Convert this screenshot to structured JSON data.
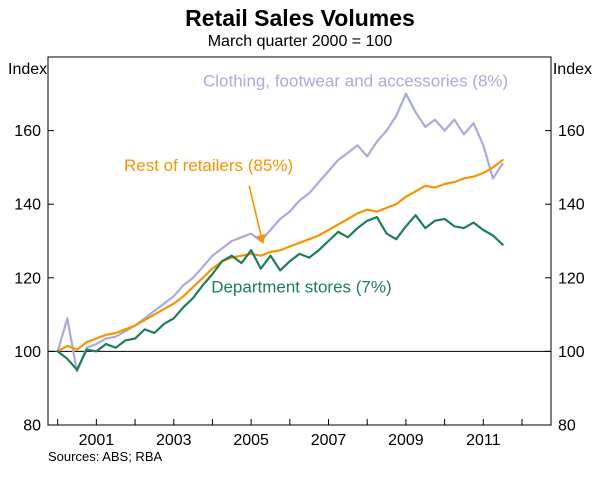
{
  "header": {
    "title": "Retail Sales Volumes",
    "subtitle": "March quarter 2000 = 100"
  },
  "footer": {
    "source": "Sources: ABS; RBA"
  },
  "chart_data": {
    "type": "line",
    "title": "Retail Sales Volumes",
    "subtitle": "March quarter 2000 = 100",
    "y_axis_label": "Index",
    "grid": false,
    "legend": "inline-annotations",
    "x_start": 2000.0,
    "x_step": 0.25,
    "x_domain": [
      1999.75,
      2012.75
    ],
    "y_domain": [
      80,
      180
    ],
    "baseline": 100,
    "y_ticks": [
      80,
      100,
      120,
      140,
      160
    ],
    "x_ticks": [
      2000,
      2001,
      2002,
      2003,
      2004,
      2005,
      2006,
      2007,
      2008,
      2009,
      2010,
      2011,
      2012
    ],
    "x_labels": [
      {
        "pos": 2001,
        "text": "2001"
      },
      {
        "pos": 2003,
        "text": "2003"
      },
      {
        "pos": 2005,
        "text": "2005"
      },
      {
        "pos": 2007,
        "text": "2007"
      },
      {
        "pos": 2009,
        "text": "2009"
      },
      {
        "pos": 2011,
        "text": "2011"
      }
    ],
    "series": [
      {
        "id": "clothing-footwear-accessories",
        "name": "Clothing, footwear and accessories (8%)",
        "color": "#ABABD8",
        "values": [
          100,
          109,
          94.5,
          101,
          102,
          103.5,
          104,
          105.5,
          107,
          109,
          111,
          113,
          115,
          118,
          120,
          123,
          126,
          128,
          130,
          131,
          132,
          130,
          133,
          136,
          138,
          141,
          143,
          146,
          149,
          152,
          154,
          156,
          153,
          157,
          160,
          164,
          170,
          165,
          161,
          163,
          160,
          163,
          159,
          162,
          156,
          147,
          151
        ]
      },
      {
        "id": "rest-of-retailers",
        "name": "Rest of retailers (85%)",
        "color": "#F79400",
        "values": [
          100,
          101.5,
          100.5,
          102.5,
          103.5,
          104.5,
          105,
          106,
          107,
          108.5,
          110,
          111.5,
          113,
          115,
          117.5,
          120,
          122.5,
          124.5,
          125.5,
          126,
          126.5,
          126,
          127,
          127.5,
          128.5,
          129.5,
          130.5,
          131.5,
          133,
          134.5,
          136,
          137.5,
          138.5,
          138,
          139,
          140,
          142,
          143.5,
          145,
          144.5,
          145.5,
          146,
          147,
          147.5,
          148.5,
          150,
          152
        ]
      },
      {
        "id": "department-stores",
        "name": "Department stores (7%)",
        "color": "#1E7D5C",
        "values": [
          100,
          98,
          95,
          100.5,
          100,
          102,
          101,
          103,
          103.5,
          106,
          105,
          107.5,
          109,
          112,
          114.5,
          118,
          121,
          124.5,
          126,
          124,
          127.5,
          122.5,
          126,
          122,
          124.5,
          126.5,
          125.5,
          127.5,
          130,
          132.5,
          131,
          133.5,
          135.5,
          136.5,
          132,
          130.5,
          134,
          137,
          133.5,
          135.5,
          136,
          134,
          133.5,
          135,
          133,
          131.5,
          129
        ]
      }
    ],
    "annotations": [
      {
        "id": "clothing-label",
        "text": "Clothing, footwear and accessories (8%)",
        "color": "#ABABD8",
        "x": 2007.7,
        "y": 172,
        "anchor": "middle"
      },
      {
        "id": "rest-of-retailers-label",
        "text": "Rest of retailers (85%)",
        "color": "#F79400",
        "x": 2003.9,
        "y": 149,
        "anchor": "middle",
        "arrow": {
          "from": [
            2004.95,
            145
          ],
          "to": [
            2005.3,
            129.5
          ]
        }
      },
      {
        "id": "department-stores-label",
        "text": "Department stores (7%)",
        "color": "#1E7D5C",
        "x": 2006.3,
        "y": 116,
        "anchor": "middle"
      }
    ]
  }
}
